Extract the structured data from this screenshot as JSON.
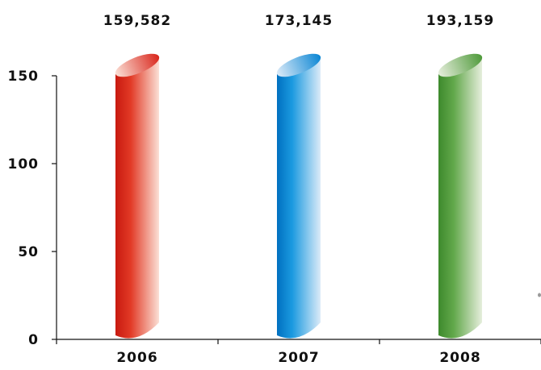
{
  "chart_data": {
    "type": "bar",
    "title": "",
    "xlabel": "",
    "ylabel": "",
    "categories": [
      "2006",
      "2007",
      "2008"
    ],
    "values": [
      159582,
      173145,
      193159
    ],
    "value_labels": [
      "159,582",
      "173,145",
      "193,159"
    ],
    "yticks": [
      "0",
      "50",
      "100",
      "150"
    ],
    "ylim": [
      0,
      150
    ],
    "grid": false,
    "legend": "none",
    "colors": [
      "#d9261c",
      "#0a86d4",
      "#4e9a3a"
    ]
  }
}
